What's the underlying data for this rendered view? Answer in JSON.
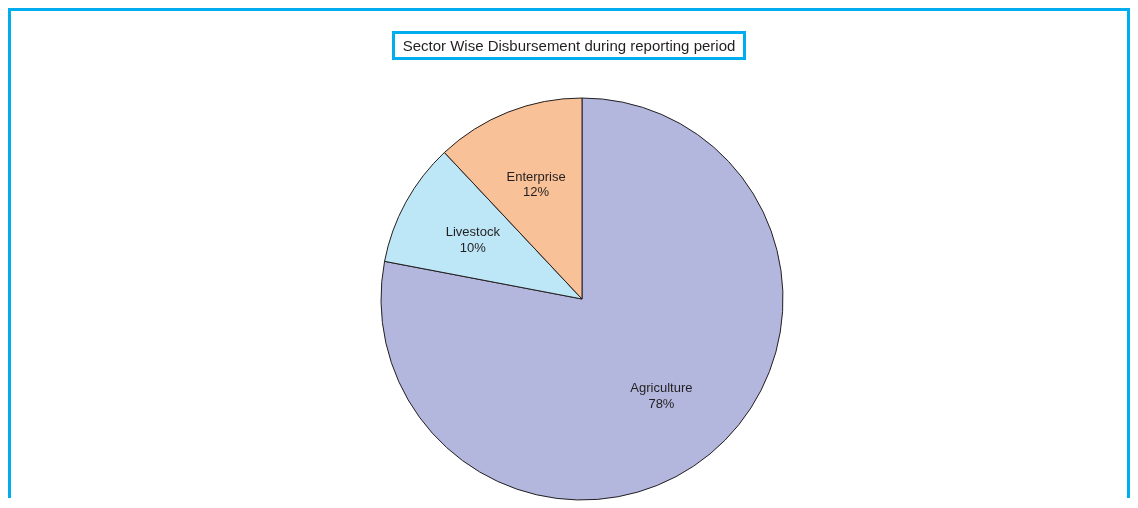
{
  "chart_data": {
    "type": "pie",
    "title": "Sector Wise Disbursement during reporting period",
    "categories": [
      "Agriculture",
      "Livestock",
      "Enterprise"
    ],
    "values": [
      78,
      10,
      12
    ],
    "colors": [
      "#b3b7de",
      "#bde6f7",
      "#f9c197"
    ],
    "value_labels": [
      "78%",
      "10%",
      "12%"
    ],
    "legend": false
  }
}
